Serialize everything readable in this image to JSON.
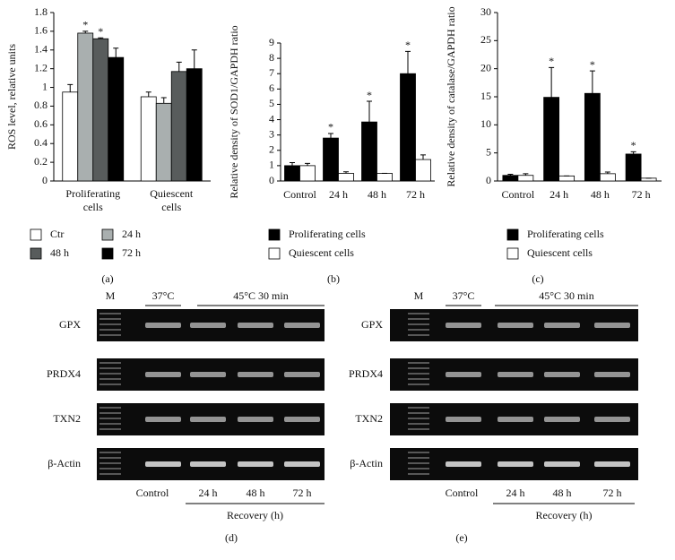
{
  "chart_data": [
    {
      "type": "bar",
      "panel": "(a)",
      "y_label": "ROS level, relative units",
      "categories": [
        "Proliferating cells",
        "Quiescent cells"
      ],
      "series": [
        {
          "name": "Ctr",
          "color": "#ffffff",
          "values": [
            0.95,
            0.9
          ],
          "errors": [
            0.08,
            0.05
          ],
          "significance": [
            null,
            null
          ]
        },
        {
          "name": "24 h",
          "color": "#a9afaf",
          "values": [
            1.58,
            0.83
          ],
          "errors": [
            0.02,
            0.06
          ],
          "significance": [
            "*",
            null
          ]
        },
        {
          "name": "48 h",
          "color": "#585c5c",
          "values": [
            1.52,
            1.17
          ],
          "errors": [
            0.01,
            0.1
          ],
          "significance": [
            "*",
            null
          ]
        },
        {
          "name": "72 h",
          "color": "#000000",
          "values": [
            1.32,
            1.2
          ],
          "errors": [
            0.1,
            0.2
          ],
          "significance": [
            null,
            null
          ]
        }
      ],
      "ylim": [
        0,
        1.8
      ],
      "yticks": [
        0,
        0.2,
        0.4,
        0.6,
        0.8,
        1,
        1.2,
        1.4,
        1.6,
        1.8
      ],
      "legend": "bottom"
    },
    {
      "type": "bar",
      "panel": "(b)",
      "y_label": "Relative density of SOD1/GAPDH ratio",
      "categories": [
        "Control",
        "24 h",
        "48 h",
        "72 h"
      ],
      "series": [
        {
          "name": "Proliferating cells",
          "color": "#000000",
          "values": [
            1.0,
            2.8,
            3.85,
            7.0
          ],
          "errors": [
            0.2,
            0.3,
            1.35,
            1.45
          ],
          "significance": [
            null,
            "*",
            "*",
            "*"
          ]
        },
        {
          "name": "Quiescent cells",
          "color": "#ffffff",
          "values": [
            1.0,
            0.5,
            0.5,
            1.4
          ],
          "errors": [
            0.15,
            0.1,
            0,
            0.3
          ],
          "significance": [
            null,
            null,
            null,
            null
          ]
        }
      ],
      "ylim": [
        0,
        9
      ],
      "yticks": [
        0,
        1,
        2,
        3,
        4,
        5,
        6,
        7,
        8,
        9
      ],
      "legend": "bottom"
    },
    {
      "type": "bar",
      "panel": "(c)",
      "y_label": "Relative density of catalase/GAPDH ratio",
      "categories": [
        "Control",
        "24 h",
        "48 h",
        "72 h"
      ],
      "series": [
        {
          "name": "Proliferating cells",
          "color": "#000000",
          "values": [
            1.0,
            14.9,
            15.6,
            4.8
          ],
          "errors": [
            0.2,
            5.3,
            4.0,
            0.4
          ],
          "significance": [
            null,
            "*",
            "*",
            "*"
          ]
        },
        {
          "name": "Quiescent cells",
          "color": "#ffffff",
          "values": [
            1.0,
            0.9,
            1.3,
            0.5
          ],
          "errors": [
            0.3,
            0,
            0.3,
            0
          ],
          "significance": [
            null,
            null,
            null,
            null
          ]
        }
      ],
      "ylim": [
        0,
        30
      ],
      "yticks": [
        0,
        5,
        10,
        15,
        20,
        25,
        30
      ],
      "legend": "bottom"
    }
  ],
  "gels": [
    {
      "panel": "(d)",
      "marker": "M",
      "control_header": "37°C",
      "treatment_header": "45°C 30 min",
      "rows": [
        "GPX",
        "PRDX4",
        "TXN2",
        "β-Actin"
      ],
      "lanes": [
        "Control",
        "24 h",
        "48 h",
        "72 h"
      ],
      "axis_label": "Recovery (h)"
    },
    {
      "panel": "(e)",
      "marker": "M",
      "control_header": "37°C",
      "treatment_header": "45°C 30 min",
      "rows": [
        "GPX",
        "PRDX4",
        "TXN2",
        "β-Actin"
      ],
      "lanes": [
        "Control",
        "24 h",
        "48 h",
        "72 h"
      ],
      "axis_label": "Recovery (h)"
    }
  ]
}
